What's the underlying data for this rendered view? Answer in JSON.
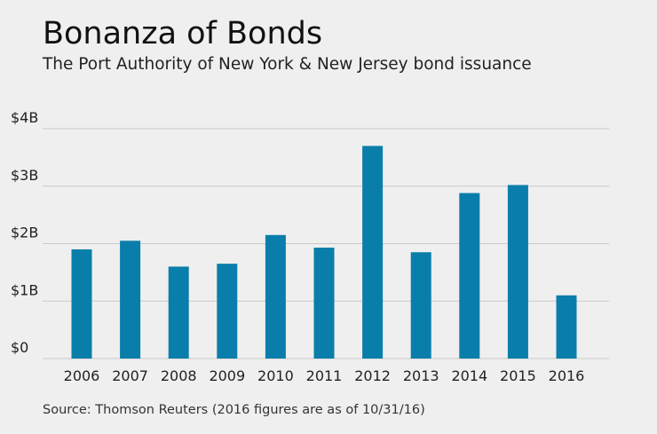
{
  "title": "Bonanza of Bonds",
  "subtitle": "The Port Authority of New York & New Jersey bond issuance",
  "source": "Source: Thomson Reuters (2016 figures are as of 10/31/16)",
  "colors": {
    "bar": "#0a7eaa",
    "grid": "#c8c8c8",
    "background": "#efefef"
  },
  "chart_data": {
    "type": "bar",
    "title": "Bonanza of Bonds",
    "subtitle": "The Port Authority of New York & New Jersey bond issuance",
    "xlabel": "",
    "ylabel": "",
    "categories": [
      "2006",
      "2007",
      "2008",
      "2009",
      "2010",
      "2011",
      "2012",
      "2013",
      "2014",
      "2015",
      "2016"
    ],
    "values": [
      1.9,
      2.05,
      1.6,
      1.65,
      2.15,
      1.93,
      3.7,
      1.85,
      2.88,
      3.02,
      1.1
    ],
    "unit": "billion USD",
    "ylim": [
      0,
      4
    ],
    "yticks": [
      {
        "value": 4,
        "label": "$4B"
      },
      {
        "value": 3,
        "label": "$3B"
      },
      {
        "value": 2,
        "label": "$2B"
      },
      {
        "value": 1,
        "label": "$1B"
      },
      {
        "value": 0,
        "label": "$0"
      }
    ],
    "grid": true,
    "legend": "none"
  }
}
